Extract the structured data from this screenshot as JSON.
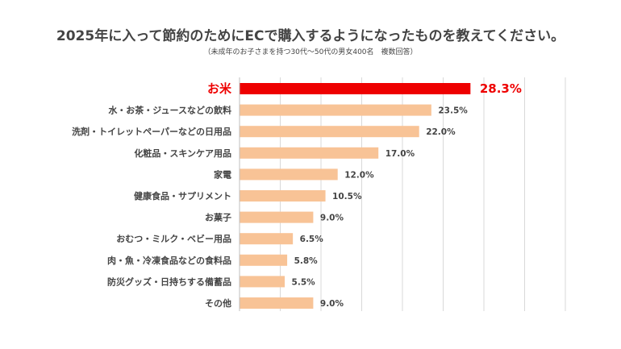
{
  "title": "2025年に入って節約のためにECで購入するようになったものを教えてください。",
  "subtitle": "（未成年のお子さまを持つ30代〜50代の男女400名　複数回答）",
  "colors": {
    "highlight": "#ee0000",
    "bar": "#f8c396",
    "grid": "#d9d9d9",
    "text": "#444444"
  },
  "chart_data": {
    "type": "bar",
    "orientation": "horizontal",
    "unit": "%",
    "xlim": [
      0,
      40
    ],
    "grid": true,
    "highlight_index": 0,
    "categories": [
      "お米",
      "水・お茶・ジュースなどの飲料",
      "洗剤・トイレットペーパーなどの日用品",
      "化粧品・スキンケア用品",
      "家電",
      "健康食品・サプリメント",
      "お菓子",
      "おむつ・ミルク・ベビー用品",
      "肉・魚・冷凍食品などの食料品",
      "防災グッズ・日持ちする備蓄品",
      "その他"
    ],
    "values": [
      28.3,
      23.5,
      22.0,
      17.0,
      12.0,
      10.5,
      9.0,
      6.5,
      5.8,
      5.5,
      9.0
    ],
    "value_labels": [
      "28.3%",
      "23.5%",
      "22.0%",
      "17.0%",
      "12.0%",
      "10.5%",
      "9.0%",
      "6.5%",
      "5.8%",
      "5.5%",
      "9.0%"
    ]
  }
}
